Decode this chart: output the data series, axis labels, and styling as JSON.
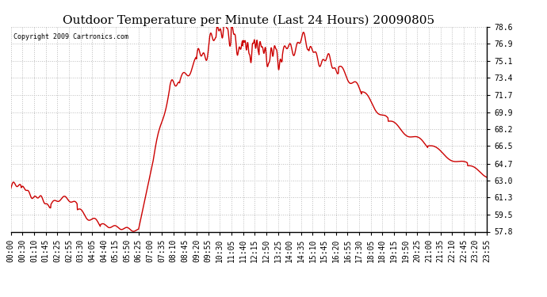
{
  "title": "Outdoor Temperature per Minute (Last 24 Hours) 20090805",
  "copyright_text": "Copyright 2009 Cartronics.com",
  "line_color": "#cc0000",
  "background_color": "#ffffff",
  "grid_color": "#bbbbbb",
  "title_fontsize": 11,
  "tick_fontsize": 7,
  "ylim": [
    57.8,
    78.6
  ],
  "yticks": [
    57.8,
    59.5,
    61.3,
    63.0,
    64.7,
    66.5,
    68.2,
    69.9,
    71.7,
    73.4,
    75.1,
    76.9,
    78.6
  ],
  "xtick_labels": [
    "00:00",
    "00:30",
    "01:10",
    "01:45",
    "02:25",
    "02:55",
    "03:30",
    "04:05",
    "04:40",
    "05:15",
    "05:50",
    "06:25",
    "07:00",
    "07:35",
    "08:10",
    "08:45",
    "09:20",
    "09:55",
    "10:30",
    "11:05",
    "11:40",
    "12:15",
    "12:50",
    "13:25",
    "14:00",
    "14:35",
    "15:10",
    "15:45",
    "16:20",
    "16:55",
    "17:30",
    "18:05",
    "18:40",
    "19:15",
    "19:50",
    "20:25",
    "21:00",
    "21:35",
    "22:10",
    "22:45",
    "23:20",
    "23:55"
  ],
  "line_width": 1.0
}
